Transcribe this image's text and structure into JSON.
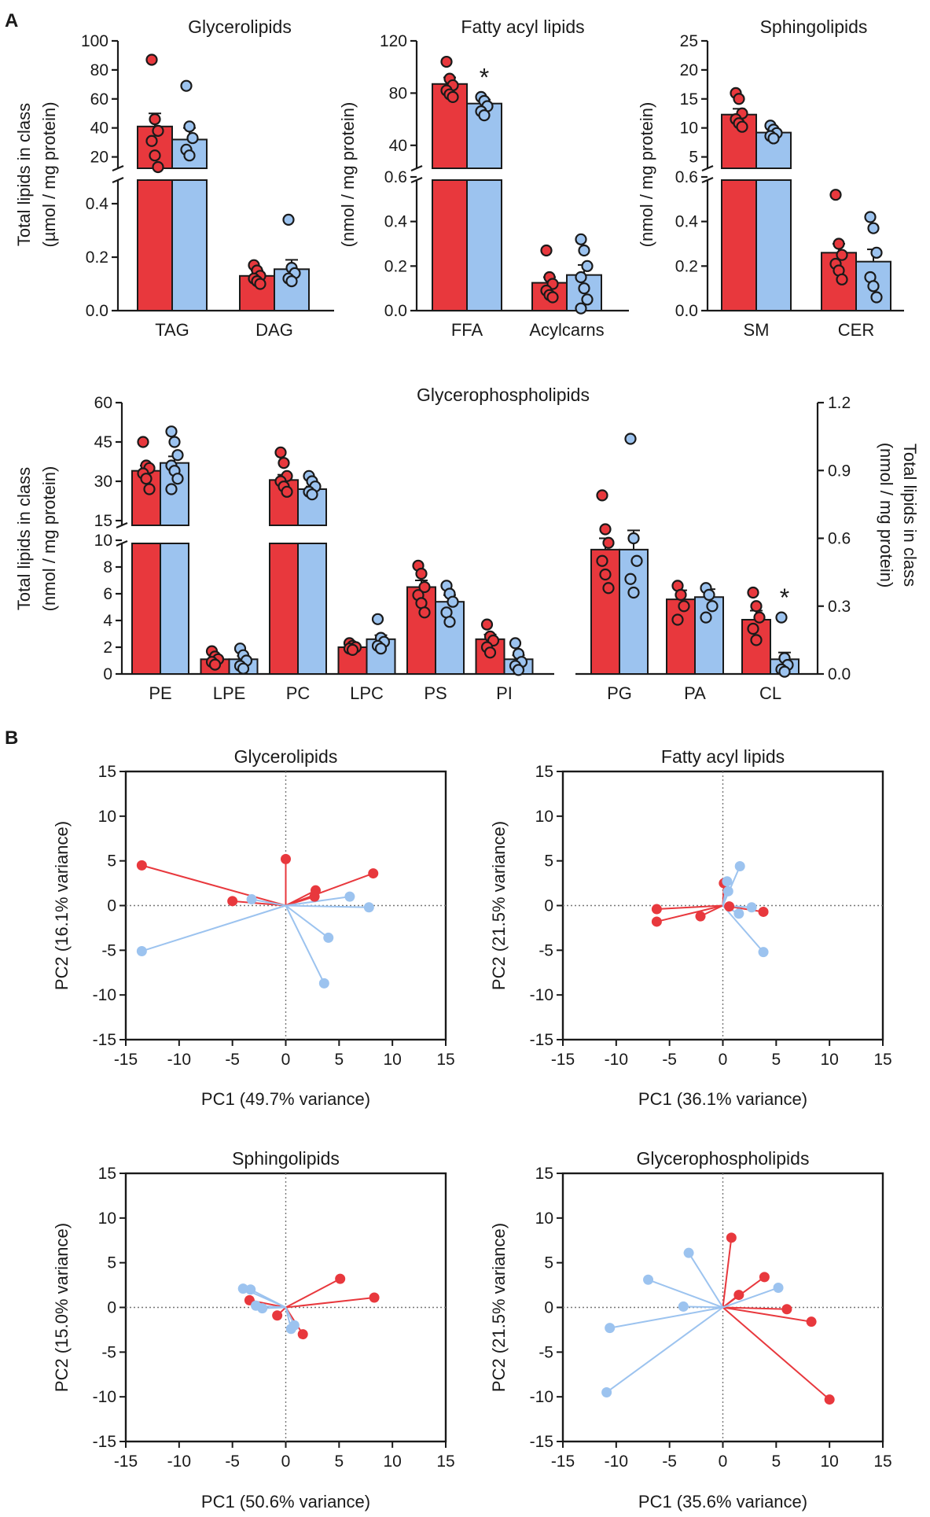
{
  "panel_labels": [
    "A",
    "B"
  ],
  "colors": {
    "group1": "#e8383d",
    "group2": "#9cc3ef",
    "axis": "#1a1a1a",
    "zero_line": "#777777"
  },
  "chart_data": [
    {
      "id": "glycerolipids-bar",
      "type": "bar",
      "title": "Glycerolipids",
      "ylabel": [
        "Total lipids in class",
        "(µmol / mg protein)"
      ],
      "upper": {
        "min": 10,
        "max": 100,
        "ticks": [
          20,
          40,
          60,
          80,
          100
        ]
      },
      "lower": {
        "min": 0,
        "max": 0.5,
        "ticks": [
          0.0,
          0.2,
          0.4
        ],
        "tick_labels": [
          "0.0",
          "0.2",
          "0.4"
        ]
      },
      "categories": [
        {
          "label": "TAG",
          "segment": "upper",
          "red": {
            "mean": 41,
            "sem": 9,
            "points": [
              87,
              46,
              38,
              31,
              21,
              13
            ]
          },
          "blue": {
            "mean": 32,
            "sem": 8,
            "points": [
              69,
              41,
              33,
              25,
              21
            ]
          }
        },
        {
          "label": "DAG",
          "segment": "lower",
          "red": {
            "mean": 0.13,
            "sem": 0.02,
            "points": [
              0.17,
              0.15,
              0.13,
              0.12,
              0.11,
              0.1
            ]
          },
          "blue": {
            "mean": 0.155,
            "sem": 0.035,
            "points": [
              0.34,
              0.16,
              0.14,
              0.12,
              0.11
            ]
          }
        }
      ],
      "significance": []
    },
    {
      "id": "fatty-acyl-bar",
      "type": "bar",
      "title": "Fatty acyl lipids",
      "ylabel": [
        "(nmol / mg protein)"
      ],
      "upper": {
        "min": 20,
        "max": 120,
        "ticks": [
          40,
          80,
          120
        ]
      },
      "lower": {
        "min": 0,
        "max": 0.6,
        "ticks": [
          0.0,
          0.2,
          0.4,
          0.6
        ],
        "tick_labels": [
          "0.0",
          "0.2",
          "0.4",
          "0.6"
        ]
      },
      "categories": [
        {
          "label": "FFA",
          "segment": "upper",
          "red": {
            "mean": 87,
            "sem": 5,
            "points": [
              104,
              91,
              86,
              82,
              79,
              77
            ]
          },
          "blue": {
            "mean": 72,
            "sem": 3,
            "points": [
              77,
              74,
              70,
              66,
              63
            ]
          }
        },
        {
          "label": "Acylcarns",
          "segment": "lower",
          "red": {
            "mean": 0.125,
            "sem": 0.025,
            "points": [
              0.27,
              0.15,
              0.12,
              0.09,
              0.07,
              0.06
            ]
          },
          "blue": {
            "mean": 0.16,
            "sem": 0.045,
            "points": [
              0.32,
              0.27,
              0.2,
              0.15,
              0.1,
              0.05,
              0.01
            ]
          }
        }
      ],
      "significance": [
        {
          "category": "FFA",
          "group": "blue",
          "label": "*"
        }
      ]
    },
    {
      "id": "sphingolipids-bar",
      "type": "bar",
      "title": "Sphingolipids",
      "ylabel": [
        "(nmol / mg protein)"
      ],
      "upper": {
        "min": 2.5,
        "max": 25,
        "ticks": [
          5,
          10,
          15,
          20,
          25
        ]
      },
      "lower": {
        "min": 0,
        "max": 0.6,
        "ticks": [
          0.0,
          0.2,
          0.4,
          0.6
        ],
        "tick_labels": [
          "0.0",
          "0.2",
          "0.4",
          "0.6"
        ]
      },
      "categories": [
        {
          "label": "SM",
          "segment": "upper",
          "red": {
            "mean": 12.3,
            "sem": 1,
            "points": [
              16,
              15,
              12.5,
              11.5,
              10.8,
              10.2
            ]
          },
          "blue": {
            "mean": 9.2,
            "sem": 0.5,
            "points": [
              10.4,
              9.7,
              9.1,
              8.6,
              8.2
            ]
          }
        },
        {
          "label": "CER",
          "segment": "lower",
          "red": {
            "mean": 0.26,
            "sem": 0.04,
            "points": [
              0.52,
              0.3,
              0.25,
              0.21,
              0.18,
              0.14
            ]
          },
          "blue": {
            "mean": 0.22,
            "sem": 0.055,
            "points": [
              0.42,
              0.37,
              0.26,
              0.15,
              0.11,
              0.06
            ]
          }
        }
      ],
      "significance": []
    },
    {
      "id": "glycerophospholipids-bar",
      "type": "bar",
      "title": "Glycerophospholipids",
      "ylabel": [
        "Total lipids in class",
        "(nmol / mg protein)"
      ],
      "ylabel_right": [
        "Total lipids in class",
        "(nmol / mg protein)"
      ],
      "upper": {
        "min": 12,
        "max": 60,
        "ticks": [
          15,
          30,
          45,
          60
        ]
      },
      "lower": {
        "min": 0,
        "max": 10,
        "ticks": [
          0,
          2,
          4,
          6,
          8,
          10
        ]
      },
      "right_axis": {
        "min": 0,
        "max": 1.2,
        "ticks": [
          0.0,
          0.3,
          0.6,
          0.9,
          1.2
        ],
        "tick_labels": [
          "0.0",
          "0.3",
          "0.6",
          "0.9",
          "1.2"
        ]
      },
      "categories": [
        {
          "label": "PE",
          "segment": "upper",
          "red": {
            "mean": 34,
            "sem": 2,
            "points": [
              45,
              36,
              35,
              33,
              31,
              27
            ]
          },
          "blue": {
            "mean": 37,
            "sem": 2.5,
            "points": [
              49,
              45,
              40,
              36,
              34,
              31,
              27
            ]
          }
        },
        {
          "label": "LPE",
          "segment": "lower",
          "red": {
            "mean": 1.1,
            "sem": 0.2,
            "points": [
              1.7,
              1.3,
              1.1,
              0.9,
              0.7
            ]
          },
          "blue": {
            "mean": 1.1,
            "sem": 0.25,
            "points": [
              1.9,
              1.4,
              1.0,
              0.6,
              0.4
            ]
          }
        },
        {
          "label": "PC",
          "segment": "upper",
          "red": {
            "mean": 30.5,
            "sem": 2,
            "points": [
              41,
              37,
              32,
              30,
              28,
              26
            ]
          },
          "blue": {
            "mean": 27,
            "sem": 1,
            "points": [
              32,
              30,
              28,
              26,
              25
            ]
          }
        },
        {
          "label": "LPC",
          "segment": "lower",
          "red": {
            "mean": 2.0,
            "sem": 0.1,
            "points": [
              2.3,
              2.1,
              2.0,
              1.9,
              1.8
            ]
          },
          "blue": {
            "mean": 2.6,
            "sem": 0.3,
            "points": [
              4.1,
              2.7,
              2.4,
              2.1,
              1.9
            ]
          }
        },
        {
          "label": "PS",
          "segment": "lower",
          "red": {
            "mean": 6.5,
            "sem": 0.5,
            "points": [
              8.1,
              7.5,
              6.5,
              5.9,
              5.3,
              4.6
            ]
          },
          "blue": {
            "mean": 5.4,
            "sem": 0.5,
            "points": [
              6.6,
              6.0,
              5.4,
              4.6,
              3.9
            ]
          }
        },
        {
          "label": "PI",
          "segment": "lower",
          "red": {
            "mean": 2.6,
            "sem": 0.35,
            "points": [
              3.7,
              2.8,
              2.5,
              2.0,
              1.6
            ]
          },
          "blue": {
            "mean": 1.1,
            "sem": 0.3,
            "points": [
              2.3,
              1.5,
              0.9,
              0.6,
              0.3
            ]
          }
        },
        {
          "label": "PG",
          "segment": "right",
          "red": {
            "mean": 0.55,
            "sem": 0.05,
            "points": [
              0.79,
              0.64,
              0.58,
              0.5,
              0.44,
              0.38
            ]
          },
          "blue": {
            "mean": 0.55,
            "sem": 0.085,
            "points": [
              1.04,
              0.6,
              0.5,
              0.42,
              0.36
            ]
          }
        },
        {
          "label": "PA",
          "segment": "right",
          "red": {
            "mean": 0.33,
            "sem": 0.04,
            "points": [
              0.39,
              0.35,
              0.3,
              0.24
            ]
          },
          "blue": {
            "mean": 0.34,
            "sem": 0.035,
            "points": [
              0.38,
              0.35,
              0.3,
              0.25
            ]
          }
        },
        {
          "label": "CL",
          "segment": "right",
          "red": {
            "mean": 0.24,
            "sem": 0.04,
            "points": [
              0.36,
              0.3,
              0.25,
              0.2,
              0.15
            ]
          },
          "blue": {
            "mean": 0.065,
            "sem": 0.03,
            "points": [
              0.25,
              0.07,
              0.04,
              0.02,
              0.01
            ]
          }
        }
      ],
      "significance": [
        {
          "category": "CL",
          "group": "blue",
          "label": "*"
        }
      ]
    },
    {
      "id": "glycerolipids-pca",
      "type": "scatter",
      "title": "Glycerolipids",
      "xlabel": "PC1 (49.7% variance)",
      "ylabel": "PC2 (16.1% variance)",
      "xlim": [
        -15,
        15
      ],
      "ylim": [
        -15,
        15
      ],
      "ticks": [
        -15,
        -10,
        -5,
        0,
        5,
        10,
        15
      ],
      "series": [
        {
          "name": "red",
          "points": [
            [
              -13.5,
              4.5
            ],
            [
              -5,
              0.5
            ],
            [
              0,
              5.2
            ],
            [
              2.8,
              1.7
            ],
            [
              2.7,
              1.0
            ],
            [
              8.2,
              3.6
            ]
          ]
        },
        {
          "name": "blue",
          "points": [
            [
              -13.5,
              -5.1
            ],
            [
              -3.2,
              0.7
            ],
            [
              6,
              1
            ],
            [
              7.8,
              -0.2
            ],
            [
              4,
              -3.6
            ],
            [
              3.6,
              -8.7
            ]
          ]
        }
      ]
    },
    {
      "id": "fatty-acyl-pca",
      "type": "scatter",
      "title": "Fatty acyl lipids",
      "xlabel": "PC1 (36.1% variance)",
      "ylabel": "PC2 (21.5% variance)",
      "xlim": [
        -15,
        15
      ],
      "ylim": [
        -15,
        15
      ],
      "ticks": [
        -15,
        -10,
        -5,
        0,
        5,
        10,
        15
      ],
      "series": [
        {
          "name": "red",
          "points": [
            [
              -6.2,
              -0.4
            ],
            [
              -6.2,
              -1.8
            ],
            [
              -2.1,
              -1.2
            ],
            [
              0.1,
              2.5
            ],
            [
              0.6,
              -0.1
            ],
            [
              3.8,
              -0.7
            ]
          ]
        },
        {
          "name": "blue",
          "points": [
            [
              1.6,
              4.4
            ],
            [
              0.4,
              2.7
            ],
            [
              0.5,
              1.6
            ],
            [
              1.5,
              -0.9
            ],
            [
              2.7,
              -0.2
            ],
            [
              3.8,
              -5.2
            ]
          ]
        }
      ]
    },
    {
      "id": "sphingolipids-pca",
      "type": "scatter",
      "title": "Sphingolipids",
      "xlabel": "PC1 (50.6% variance)",
      "ylabel": "PC2 (15.0% variance)",
      "xlim": [
        -15,
        15
      ],
      "ylim": [
        -15,
        15
      ],
      "ticks": [
        -15,
        -10,
        -5,
        0,
        5,
        10,
        15
      ],
      "series": [
        {
          "name": "red",
          "points": [
            [
              -3.4,
              0.8
            ],
            [
              -0.8,
              -0.9
            ],
            [
              1.6,
              -3.0
            ],
            [
              5.1,
              3.2
            ],
            [
              8.3,
              1.1
            ]
          ]
        },
        {
          "name": "blue",
          "points": [
            [
              -4,
              2.1
            ],
            [
              -3.3,
              2.0
            ],
            [
              -2.8,
              0.2
            ],
            [
              -2.2,
              -0.1
            ],
            [
              0.5,
              -2.4
            ],
            [
              0.8,
              -2.0
            ]
          ]
        }
      ]
    },
    {
      "id": "glycerophospholipids-pca",
      "type": "scatter",
      "title": "Glycerophospholipids",
      "xlabel": "PC1 (35.6% variance)",
      "ylabel": "PC2 (21.5% variance)",
      "xlim": [
        -15,
        15
      ],
      "ylim": [
        -15,
        15
      ],
      "ticks": [
        -15,
        -10,
        -5,
        0,
        5,
        10,
        15
      ],
      "series": [
        {
          "name": "red",
          "points": [
            [
              0.8,
              7.8
            ],
            [
              3.9,
              3.4
            ],
            [
              1.5,
              1.4
            ],
            [
              6,
              -0.2
            ],
            [
              8.3,
              -1.6
            ],
            [
              10,
              -10.3
            ]
          ]
        },
        {
          "name": "blue",
          "points": [
            [
              -3.2,
              6.1
            ],
            [
              -7,
              3.1
            ],
            [
              -3.7,
              0.1
            ],
            [
              5.2,
              2.2
            ],
            [
              -10.6,
              -2.3
            ],
            [
              -10.9,
              -9.5
            ]
          ]
        }
      ]
    }
  ]
}
